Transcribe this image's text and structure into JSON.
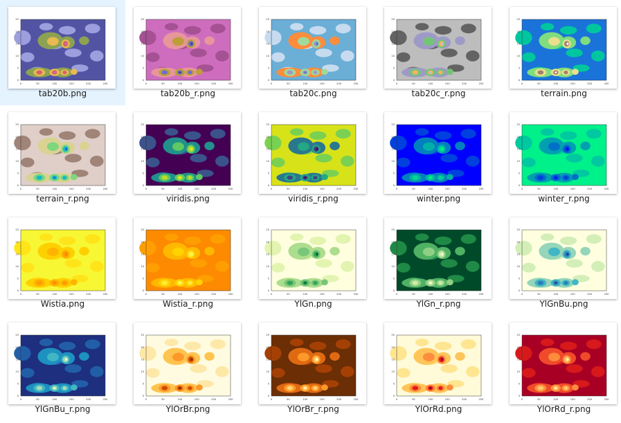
{
  "window": {
    "view": "large-icons"
  },
  "selected_index": 0,
  "plot_ticks": {
    "x": [
      "0",
      "50",
      "100",
      "150",
      "200",
      "250"
    ],
    "y": [
      "0",
      "5",
      "10",
      "15",
      "20",
      "25"
    ]
  },
  "files": [
    {
      "name": "tab20b.png",
      "palette": [
        "#5254a3",
        "#9c9ede",
        "#8ca252",
        "#e7ba52",
        "#d6616b",
        "#ce6dbd"
      ]
    },
    {
      "name": "tab20b_r.png",
      "palette": [
        "#ce6dbd",
        "#a55194",
        "#e7969c",
        "#bd9e39",
        "#6b6ecf",
        "#393b79"
      ]
    },
    {
      "name": "tab20c.png",
      "palette": [
        "#6baed6",
        "#c6dbef",
        "#fd8d3c",
        "#a1d99b",
        "#9e9ac8",
        "#3182bd"
      ]
    },
    {
      "name": "tab20c_r.png",
      "palette": [
        "#bdbdbd",
        "#636363",
        "#9e9ac8",
        "#74c476",
        "#fdae6b",
        "#9ecae1"
      ]
    },
    {
      "name": "terrain.png",
      "palette": [
        "#1a73d9",
        "#00c6a0",
        "#7fdc7f",
        "#e8e08a",
        "#a08070",
        "#fffcff"
      ]
    },
    {
      "name": "terrain_r.png",
      "palette": [
        "#dfcfc8",
        "#a08478",
        "#d8d392",
        "#7ed67e",
        "#17b8c8",
        "#1b5fd0"
      ]
    },
    {
      "name": "viridis.png",
      "palette": [
        "#440154",
        "#3b528b",
        "#21918c",
        "#5ec962",
        "#b8de29",
        "#fde725"
      ]
    },
    {
      "name": "viridis_r.png",
      "palette": [
        "#d8e219",
        "#7ad151",
        "#2a788e",
        "#22a884",
        "#414487",
        "#440154"
      ]
    },
    {
      "name": "winter.png",
      "palette": [
        "#0000ff",
        "#0040df",
        "#0080bf",
        "#00b0a8",
        "#00d890",
        "#00ff80"
      ]
    },
    {
      "name": "winter_r.png",
      "palette": [
        "#00f08a",
        "#00c8a0",
        "#00a0b0",
        "#0070c8",
        "#0040e0",
        "#0000ff"
      ]
    },
    {
      "name": "Wistia.png",
      "palette": [
        "#f7f734",
        "#ffe41a",
        "#ffd000",
        "#ffb400",
        "#ff9a00",
        "#fc7f00"
      ]
    },
    {
      "name": "Wistia_r.png",
      "palette": [
        "#fd8a00",
        "#ff9e00",
        "#ffb800",
        "#ffd200",
        "#ffec3a",
        "#e4ff7a"
      ]
    },
    {
      "name": "YlGn.png",
      "palette": [
        "#ffffe0",
        "#e3f4b0",
        "#addd8e",
        "#78c679",
        "#31a354",
        "#005a32"
      ]
    },
    {
      "name": "YlGn_r.png",
      "palette": [
        "#004a2a",
        "#1f8a46",
        "#4fb164",
        "#8fd085",
        "#cdeca8",
        "#fdfde0"
      ]
    },
    {
      "name": "YlGnBu.png",
      "palette": [
        "#ffffe0",
        "#d4eeb8",
        "#95d5b9",
        "#42b6c4",
        "#2c7fb8",
        "#253494"
      ]
    },
    {
      "name": "YlGnBu_r.png",
      "palette": [
        "#1d2f7e",
        "#225ea8",
        "#1d91c0",
        "#41b6c4",
        "#a5dcb6",
        "#f5fbd0"
      ]
    },
    {
      "name": "YlOrBr.png",
      "palette": [
        "#fffbe0",
        "#fee8a8",
        "#fec44f",
        "#fe9929",
        "#cc4c02",
        "#7a2e04"
      ]
    },
    {
      "name": "YlOrBr_r.png",
      "palette": [
        "#6b2e05",
        "#a54004",
        "#e06a12",
        "#fe9929",
        "#fed26e",
        "#fff8d0"
      ]
    },
    {
      "name": "YlOrRd.png",
      "palette": [
        "#fffbd8",
        "#fee590",
        "#fec55a",
        "#fd8d3c",
        "#e31a1c",
        "#8c0026"
      ]
    },
    {
      "name": "YlOrRd_r.png",
      "palette": [
        "#a80024",
        "#d7191c",
        "#f04a2a",
        "#fd8d3c",
        "#fec66a",
        "#fff4c0"
      ]
    }
  ]
}
